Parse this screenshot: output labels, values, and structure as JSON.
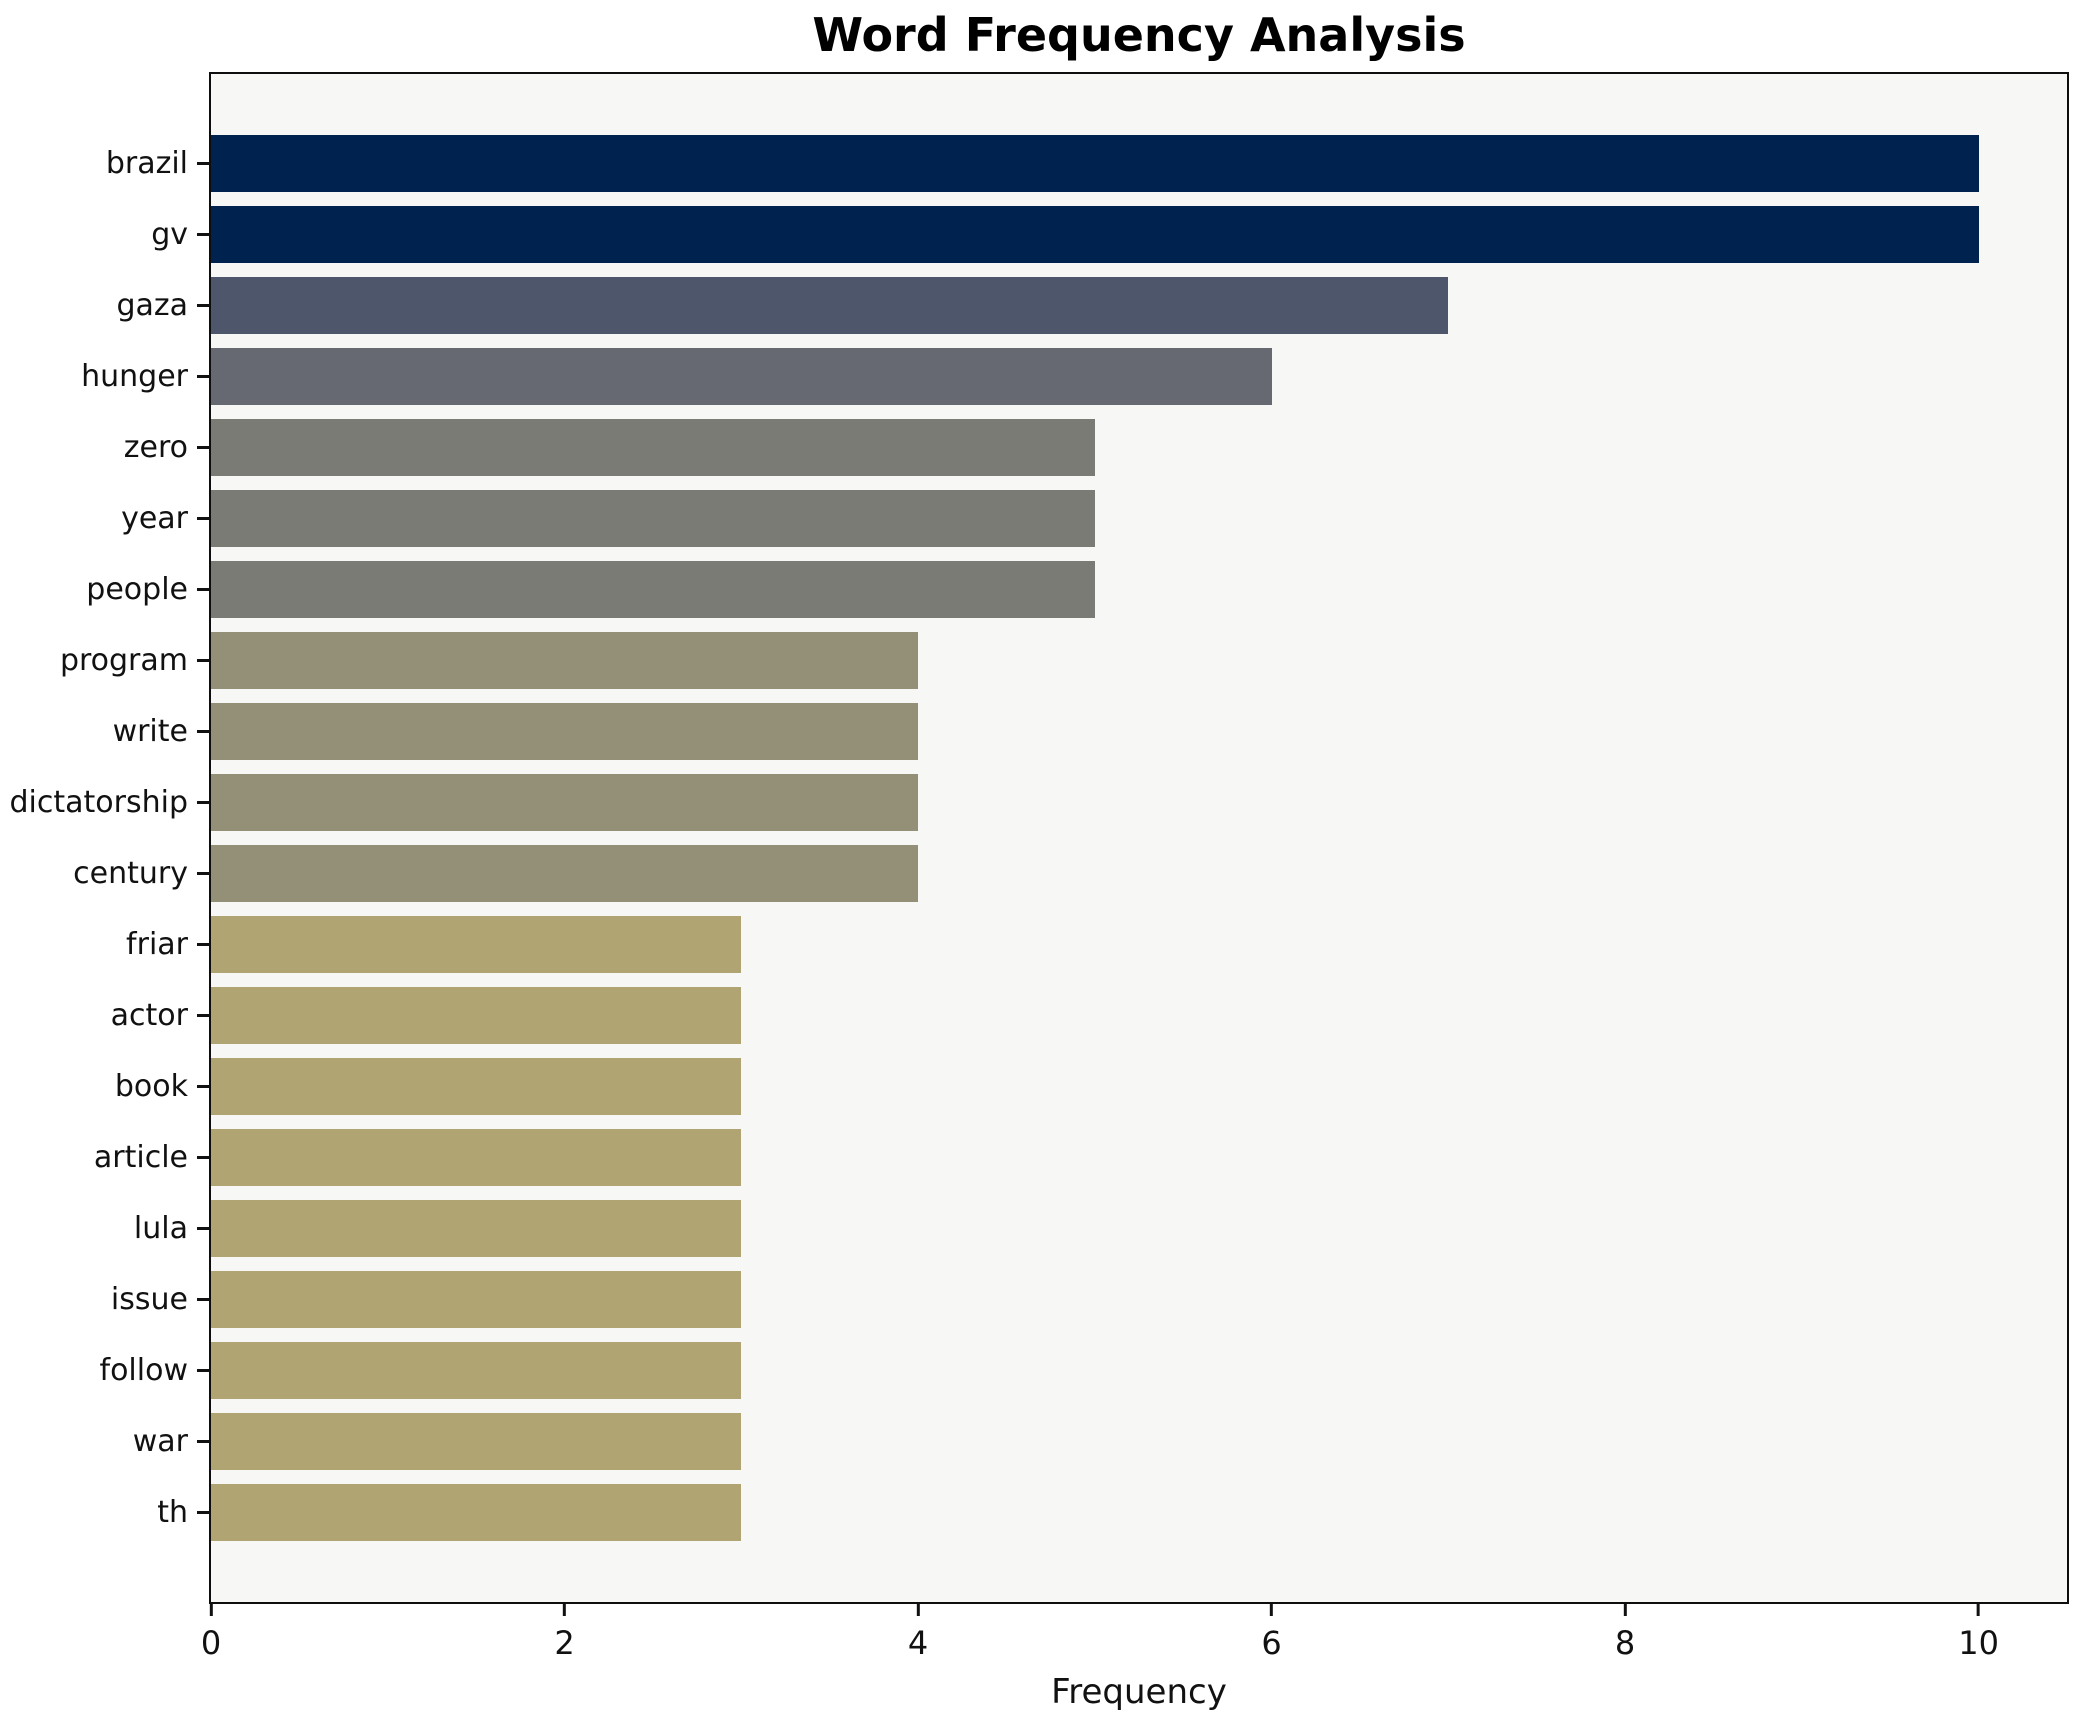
{
  "chart_data": {
    "type": "bar",
    "orientation": "horizontal",
    "title": "Word Frequency Analysis",
    "xlabel": "Frequency",
    "ylabel": "",
    "categories": [
      "brazil",
      "gv",
      "gaza",
      "hunger",
      "zero",
      "year",
      "people",
      "program",
      "write",
      "dictatorship",
      "century",
      "friar",
      "actor",
      "book",
      "article",
      "lula",
      "issue",
      "follow",
      "war",
      "th"
    ],
    "values": [
      10,
      10,
      7,
      6,
      5,
      5,
      5,
      4,
      4,
      4,
      4,
      3,
      3,
      3,
      3,
      3,
      3,
      3,
      3,
      3
    ],
    "bar_colors": [
      "#00224e",
      "#00224e",
      "#4e566c",
      "#666971",
      "#7b7b75",
      "#7b7b75",
      "#7b7b75",
      "#948f77",
      "#948f77",
      "#948f77",
      "#948f77",
      "#b0a572",
      "#b0a572",
      "#b0a572",
      "#b0a572",
      "#b0a572",
      "#b0a572",
      "#b0a572",
      "#b0a572",
      "#b0a572"
    ],
    "x_ticks": [
      "0",
      "2",
      "4",
      "6",
      "8",
      "10"
    ],
    "x_tick_values": [
      0,
      2,
      4,
      6,
      8,
      10
    ],
    "xlim": [
      0,
      10.5
    ],
    "grid": false,
    "legend": "none",
    "plot_bg": "#f7f7f5",
    "figure_bg": "#ffffff",
    "spine_color": "#0e0e0e",
    "colormap": "cividis"
  }
}
